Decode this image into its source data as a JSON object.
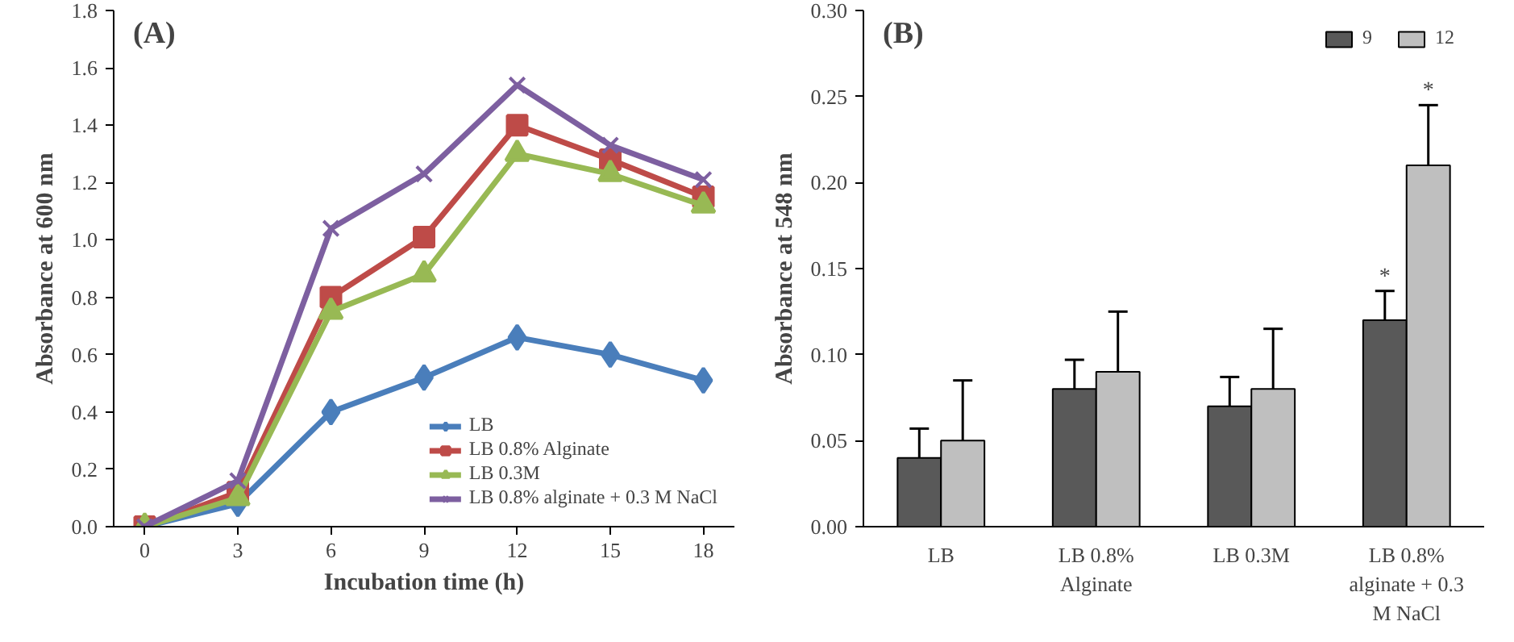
{
  "chart_data": [
    {
      "type": "line",
      "xlabel": "Incubation time (h)",
      "ylabel": "Absorbance at 600 nm",
      "annotations": [
        "(A)"
      ],
      "x": [
        0,
        3,
        6,
        9,
        12,
        15,
        18
      ],
      "series": [
        {
          "name": "LB",
          "color": "#4a7ebb",
          "marker": "diamond",
          "values": [
            0,
            0.08,
            0.4,
            0.52,
            0.66,
            0.6,
            0.51
          ]
        },
        {
          "name": "LB 0.8% Alginate",
          "color": "#be4b48",
          "marker": "square",
          "values": [
            0,
            0.12,
            0.8,
            1.01,
            1.4,
            1.28,
            1.15
          ]
        },
        {
          "name": "LB 0.3M",
          "color": "#98b954",
          "marker": "triangle",
          "values": [
            0,
            0.1,
            0.75,
            0.88,
            1.3,
            1.23,
            1.12
          ]
        },
        {
          "name": "LB 0.8% alginate + 0.3 M NaCl",
          "color": "#7d5fa0",
          "marker": "cross",
          "values": [
            0,
            0.16,
            1.04,
            1.23,
            1.54,
            1.33,
            1.21
          ]
        }
      ],
      "xlim": [
        -1,
        19
      ],
      "xticks": [
        0,
        3,
        6,
        9,
        12,
        15,
        18
      ],
      "ylim": [
        0,
        1.8
      ],
      "yticks": [
        {
          "value": 0,
          "label": "0.0"
        },
        0.2,
        0.4,
        0.6,
        0.8,
        {
          "value": 1,
          "label": "1.0"
        },
        1.2,
        1.4,
        1.6,
        1.8
      ],
      "grid": false,
      "legend": "bottom right",
      "line_style": "solid"
    },
    {
      "type": "bar",
      "ylabel": "Absorbance at 548 nm",
      "categories": [
        "LB",
        "LB 0.8% Alginate",
        "LB 0.3M",
        "LB 0.8% alginate + 0.3 M NaCl"
      ],
      "annotations": [
        "(B)",
        {
          "text": "*",
          "x": "LB 0.8% alginate + 0.3 M NaCl",
          "y": 0.12
        },
        {
          "text": "*",
          "x": "LB 0.8% alginate + 0.3 M NaCl",
          "y": 0.21
        }
      ],
      "series": [
        {
          "name": "9",
          "color": "#595959",
          "values": [
            0.04,
            0.08,
            0.07,
            0.12
          ],
          "errors": [
            0.017,
            0.017,
            0.017,
            0.017
          ]
        },
        {
          "name": "12",
          "color": "#bfbfbf",
          "values": [
            0.05,
            0.09,
            0.08,
            0.21
          ],
          "errors": [
            0.035,
            0.035,
            0.035,
            0.035
          ]
        }
      ],
      "ylim": [
        0,
        0.3
      ],
      "yticks": [
        {
          "value": 0,
          "label": "0.00"
        },
        0.05,
        {
          "value": 0.1,
          "label": "0.10"
        },
        0.15,
        {
          "value": 0.2,
          "label": "0.20"
        },
        0.25,
        {
          "value": 0.3,
          "label": "0.30"
        }
      ],
      "grid": false,
      "legend": "top right"
    }
  ]
}
